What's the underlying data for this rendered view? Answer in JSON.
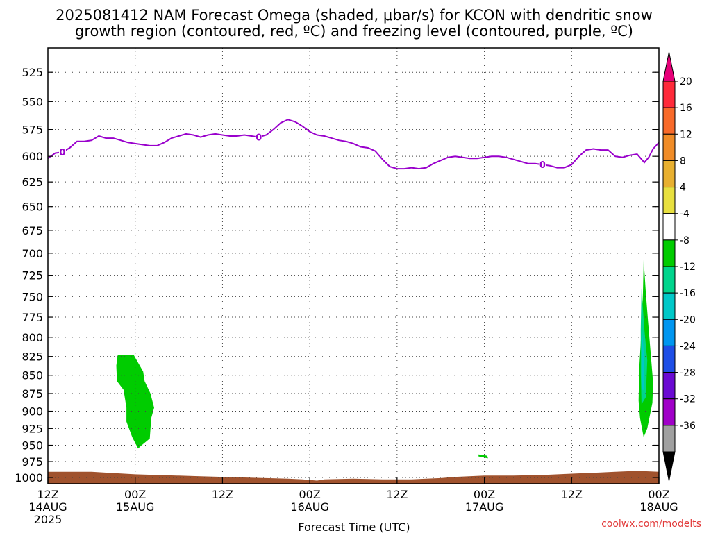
{
  "chart_data": {
    "type": "heatmap",
    "title_lines": [
      "2025081412 NAM Forecast Omega (shaded, μbar/s) for KCON with dendritic snow",
      "growth region (contoured, red, ºC) and freezing level (contoured, purple, ºC)"
    ],
    "xlabel": "Forecast Time (UTC)",
    "x_ticks": [
      {
        "hours": 0,
        "lines": [
          "12Z",
          "14AUG",
          "2025"
        ]
      },
      {
        "hours": 12,
        "lines": [
          "00Z",
          "15AUG"
        ]
      },
      {
        "hours": 24,
        "lines": [
          "12Z"
        ]
      },
      {
        "hours": 36,
        "lines": [
          "00Z",
          "16AUG"
        ]
      },
      {
        "hours": 48,
        "lines": [
          "12Z"
        ]
      },
      {
        "hours": 60,
        "lines": [
          "00Z",
          "17AUG"
        ]
      },
      {
        "hours": 72,
        "lines": [
          "12Z"
        ]
      },
      {
        "hours": 84,
        "lines": [
          "00Z",
          "18AUG"
        ]
      }
    ],
    "xlim": [
      0,
      84
    ],
    "ylabel": "",
    "y_ticks": [
      525,
      550,
      575,
      600,
      625,
      650,
      675,
      700,
      725,
      750,
      775,
      800,
      825,
      850,
      875,
      900,
      925,
      950,
      975,
      1000
    ],
    "ylim": [
      505,
      1010
    ],
    "y_scale": "log-pressure",
    "grid": true,
    "colorbar": {
      "placement": "right",
      "labels": [
        "20",
        "16",
        "12",
        "8",
        "4",
        "-4",
        "-8",
        "-12",
        "-16",
        "-20",
        "-24",
        "-28",
        "-32",
        "-36"
      ],
      "colors": [
        "#ff2a3a",
        "#f86a2a",
        "#f08c28",
        "#e8b030",
        "#e8e040",
        "#ffffff",
        "#00cc00",
        "#00d48c",
        "#00c8c8",
        "#0096f0",
        "#1e4ee6",
        "#6a0ad2",
        "#a000c8",
        "#a0a0a0"
      ],
      "top_arrow_color": "#e60078",
      "bottom_arrow_color": "#000000"
    },
    "freezing_level": {
      "color": "#9900cc",
      "label": "0",
      "label_hours": [
        2,
        29,
        68
      ],
      "points": [
        [
          0,
          602
        ],
        [
          1,
          597
        ],
        [
          2,
          596
        ],
        [
          3,
          592
        ],
        [
          4,
          586
        ],
        [
          5,
          586
        ],
        [
          6,
          585
        ],
        [
          7,
          581
        ],
        [
          8,
          583
        ],
        [
          9,
          583
        ],
        [
          10,
          585
        ],
        [
          11,
          587
        ],
        [
          12,
          588
        ],
        [
          13,
          589
        ],
        [
          14,
          590
        ],
        [
          15,
          590
        ],
        [
          16,
          587
        ],
        [
          17,
          583
        ],
        [
          18,
          581
        ],
        [
          19,
          579
        ],
        [
          20,
          580
        ],
        [
          21,
          582
        ],
        [
          22,
          580
        ],
        [
          23,
          579
        ],
        [
          24,
          580
        ],
        [
          25,
          581
        ],
        [
          26,
          581
        ],
        [
          27,
          580
        ],
        [
          28,
          581
        ],
        [
          29,
          582
        ],
        [
          30,
          580
        ],
        [
          31,
          575
        ],
        [
          32,
          569
        ],
        [
          33,
          566
        ],
        [
          34,
          568
        ],
        [
          35,
          572
        ],
        [
          36,
          577
        ],
        [
          37,
          580
        ],
        [
          38,
          581
        ],
        [
          39,
          583
        ],
        [
          40,
          585
        ],
        [
          41,
          586
        ],
        [
          42,
          588
        ],
        [
          43,
          591
        ],
        [
          44,
          592
        ],
        [
          45,
          595
        ],
        [
          46,
          603
        ],
        [
          47,
          610
        ],
        [
          48,
          612
        ],
        [
          49,
          612
        ],
        [
          50,
          611
        ],
        [
          51,
          612
        ],
        [
          52,
          611
        ],
        [
          53,
          607
        ],
        [
          54,
          604
        ],
        [
          55,
          601
        ],
        [
          56,
          600
        ],
        [
          57,
          601
        ],
        [
          58,
          602
        ],
        [
          59,
          602
        ],
        [
          60,
          601
        ],
        [
          61,
          600
        ],
        [
          62,
          600
        ],
        [
          63,
          601
        ],
        [
          64,
          603
        ],
        [
          65,
          605
        ],
        [
          66,
          607
        ],
        [
          67,
          607
        ],
        [
          68,
          608
        ],
        [
          69,
          609
        ],
        [
          70,
          611
        ],
        [
          71,
          611
        ],
        [
          72,
          608
        ],
        [
          73,
          600
        ],
        [
          74,
          594
        ],
        [
          75,
          593
        ],
        [
          76,
          594
        ],
        [
          77,
          594
        ],
        [
          78,
          600
        ],
        [
          79,
          601
        ],
        [
          80,
          599
        ],
        [
          81,
          598
        ],
        [
          82,
          606
        ],
        [
          82.6,
          601
        ],
        [
          83.2,
          593
        ],
        [
          84,
          587
        ],
        [
          84.5,
          579
        ]
      ]
    },
    "omega_regions": [
      {
        "value_range": "-4 to -8",
        "color": "#00cc00",
        "points": [
          [
            9.6,
            823
          ],
          [
            11.8,
            823
          ],
          [
            13.1,
            845
          ],
          [
            13.3,
            858
          ],
          [
            14.1,
            875
          ],
          [
            14.6,
            895
          ],
          [
            14.2,
            910
          ],
          [
            14.0,
            940
          ],
          [
            12.9,
            950
          ],
          [
            12.4,
            955
          ],
          [
            11.6,
            938
          ],
          [
            10.8,
            915
          ],
          [
            10.8,
            895
          ],
          [
            10.4,
            870
          ],
          [
            9.5,
            858
          ],
          [
            9.4,
            837
          ]
        ]
      },
      {
        "value_range": "-4 to -8",
        "color": "#00cc00",
        "points": [
          [
            59.2,
            964
          ],
          [
            60.4,
            966
          ],
          [
            60.5,
            970
          ],
          [
            59.2,
            967
          ]
        ]
      },
      {
        "value_range": "-4 to -8",
        "color": "#00cc00",
        "points": [
          [
            81.9,
            707
          ],
          [
            82.2,
            745
          ],
          [
            82.5,
            780
          ],
          [
            82.9,
            825
          ],
          [
            83.2,
            860
          ],
          [
            83.1,
            888
          ],
          [
            82.4,
            925
          ],
          [
            81.9,
            938
          ],
          [
            81.4,
            910
          ],
          [
            81.2,
            885
          ],
          [
            81.3,
            840
          ],
          [
            81.6,
            790
          ],
          [
            81.8,
            745
          ]
        ]
      },
      {
        "value_range": "-8 to -12",
        "color": "#00d48c",
        "points": [
          [
            81.6,
            740
          ],
          [
            82.0,
            790
          ],
          [
            82.4,
            830
          ],
          [
            82.2,
            880
          ],
          [
            81.6,
            890
          ],
          [
            81.5,
            845
          ],
          [
            81.5,
            790
          ]
        ]
      },
      {
        "value_range": "-12 to -16",
        "color": "#00c8c8",
        "points": [
          [
            81.7,
            790
          ],
          [
            82.0,
            830
          ],
          [
            81.9,
            870
          ],
          [
            81.6,
            870
          ],
          [
            81.6,
            830
          ]
        ]
      }
    ],
    "terrain": {
      "color": "#a0522d",
      "top_points": [
        [
          0,
          991
        ],
        [
          3,
          991
        ],
        [
          6,
          991
        ],
        [
          9,
          993
        ],
        [
          12,
          995
        ],
        [
          15,
          996
        ],
        [
          18,
          997
        ],
        [
          21,
          998
        ],
        [
          24,
          999
        ],
        [
          27,
          1000
        ],
        [
          30,
          1001
        ],
        [
          33,
          1002
        ],
        [
          35,
          1003
        ],
        [
          36,
          1004
        ],
        [
          37,
          1005
        ],
        [
          38,
          1003
        ],
        [
          42,
          1002
        ],
        [
          46,
          1003
        ],
        [
          50,
          1003
        ],
        [
          52,
          1002
        ],
        [
          54,
          1001
        ],
        [
          56,
          999
        ],
        [
          60,
          997
        ],
        [
          64,
          997
        ],
        [
          68,
          996
        ],
        [
          72,
          994
        ],
        [
          74,
          993
        ],
        [
          76,
          992
        ],
        [
          78,
          991
        ],
        [
          80,
          990
        ],
        [
          82,
          990
        ],
        [
          84,
          991
        ]
      ]
    },
    "credit": "coolwx.com/modelts"
  }
}
